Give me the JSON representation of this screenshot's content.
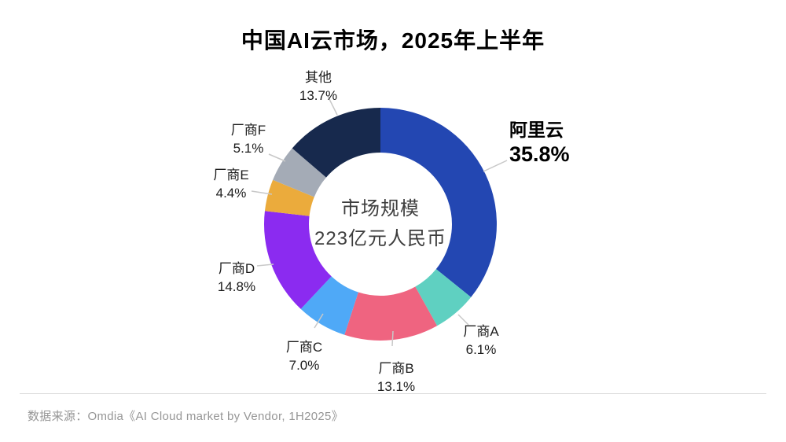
{
  "chart_data": {
    "type": "pie",
    "donut": true,
    "title": "中国AI云市场，2025年上半年",
    "center_label": {
      "line1": "市场规模",
      "line2": "223亿元人民币"
    },
    "start_angle_deg": 0,
    "direction": "clockwise",
    "legend_position": "none",
    "total_pct": 100.0,
    "segments": [
      {
        "key": "alibaba-cloud",
        "label": "阿里云",
        "value": 35.8,
        "pct_label": "35.8%",
        "color": "#2347B2",
        "emphasized": true
      },
      {
        "key": "vendor-a",
        "label": "厂商A",
        "value": 6.1,
        "pct_label": "6.1%",
        "color": "#5FD0C1"
      },
      {
        "key": "vendor-b",
        "label": "厂商B",
        "value": 13.1,
        "pct_label": "13.1%",
        "color": "#EF6480"
      },
      {
        "key": "vendor-c",
        "label": "厂商C",
        "value": 7.0,
        "pct_label": "7.0%",
        "color": "#4FA9F7"
      },
      {
        "key": "vendor-d",
        "label": "厂商D",
        "value": 14.8,
        "pct_label": "14.8%",
        "color": "#8B2BF0"
      },
      {
        "key": "vendor-e",
        "label": "厂商E",
        "value": 4.4,
        "pct_label": "4.4%",
        "color": "#EBAB3C"
      },
      {
        "key": "vendor-f",
        "label": "厂商F",
        "value": 5.1,
        "pct_label": "5.1%",
        "color": "#A4ABB6"
      },
      {
        "key": "others",
        "label": "其他",
        "value": 13.7,
        "pct_label": "13.7%",
        "color": "#17294D"
      }
    ]
  },
  "footer": {
    "source": "数据来源：Omdia《AI Cloud market by Vendor, 1H2025》"
  }
}
